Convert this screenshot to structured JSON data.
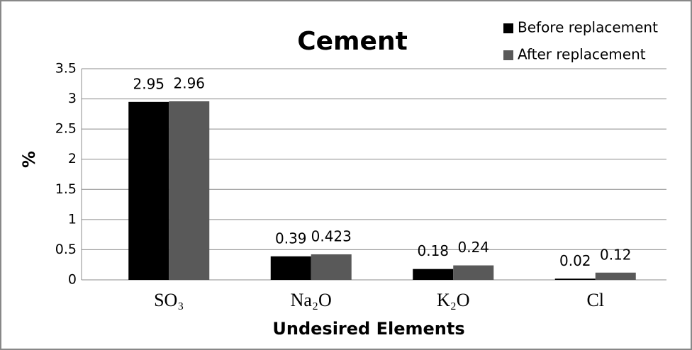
{
  "chart_data": {
    "type": "bar",
    "title": "Cement",
    "x_label": "Undesired Elements",
    "y_label": "%",
    "categories": [
      "SO₃",
      "Na₂O",
      "K₂O",
      "Cl"
    ],
    "series": [
      {
        "name": "Before replacement",
        "color": "#000000",
        "values": [
          2.95,
          0.39,
          0.18,
          0.02
        ]
      },
      {
        "name": "After replacement",
        "color": "#595959",
        "values": [
          2.96,
          0.423,
          0.24,
          0.12
        ]
      }
    ],
    "ylim": [
      0,
      3.5
    ],
    "yticks": [
      0,
      0.5,
      1,
      1.5,
      2,
      2.5,
      3,
      3.5
    ],
    "grid": true,
    "legend": "top-right"
  }
}
